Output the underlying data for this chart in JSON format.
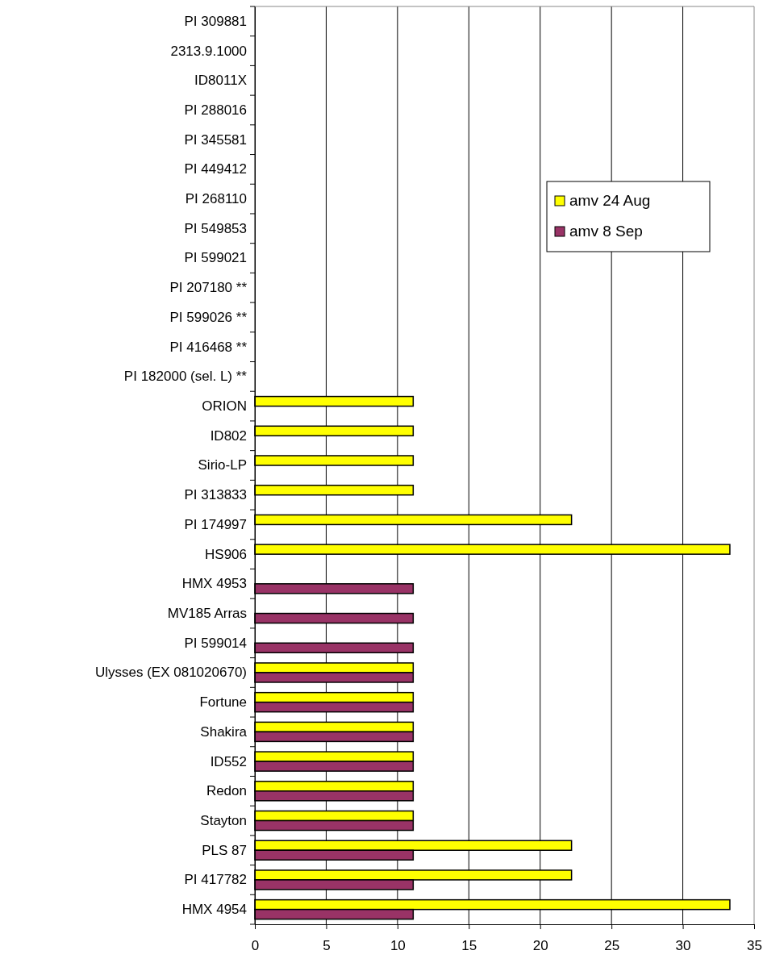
{
  "chart_data": {
    "type": "bar",
    "orientation": "horizontal",
    "categories": [
      "PI 309881",
      "2313.9.1000",
      "ID8011X",
      "PI 288016",
      "PI 345581",
      "PI 449412",
      "PI 268110",
      "PI 549853",
      "PI 599021",
      "PI 207180 **",
      "PI 599026 **",
      "PI 416468 **",
      "PI 182000 (sel. L) **",
      "ORION",
      "ID802",
      "Sirio-LP",
      "PI 313833",
      "PI 174997",
      "HS906",
      "HMX 4953",
      "MV185 Arras",
      "PI 599014",
      "Ulysses (EX 081020670)",
      "Fortune",
      "Shakira",
      "ID552",
      "Redon",
      "Stayton",
      "PLS 87",
      "PI 417782",
      "HMX 4954"
    ],
    "series": [
      {
        "name": "amv 24 Aug",
        "color": "#ffff00",
        "values": [
          0,
          0,
          0,
          0,
          0,
          0,
          0,
          0,
          0,
          0,
          0,
          0,
          0,
          11.1,
          11.1,
          11.1,
          11.1,
          22.2,
          33.3,
          0,
          0,
          0,
          11.1,
          11.1,
          11.1,
          11.1,
          11.1,
          11.1,
          22.2,
          22.2,
          33.3
        ]
      },
      {
        "name": "amv 8 Sep",
        "color": "#993366",
        "values": [
          0,
          0,
          0,
          0,
          0,
          0,
          0,
          0,
          0,
          0,
          0,
          0,
          0,
          0,
          0,
          0,
          0,
          0,
          0,
          11.1,
          11.1,
          11.1,
          11.1,
          11.1,
          11.1,
          11.1,
          11.1,
          11.1,
          11.1,
          11.1,
          11.1
        ]
      }
    ],
    "xlim": [
      0,
      35
    ],
    "xticks": [
      0,
      5,
      10,
      15,
      20,
      25,
      30,
      35
    ],
    "grid": "x",
    "legend": "top right"
  }
}
